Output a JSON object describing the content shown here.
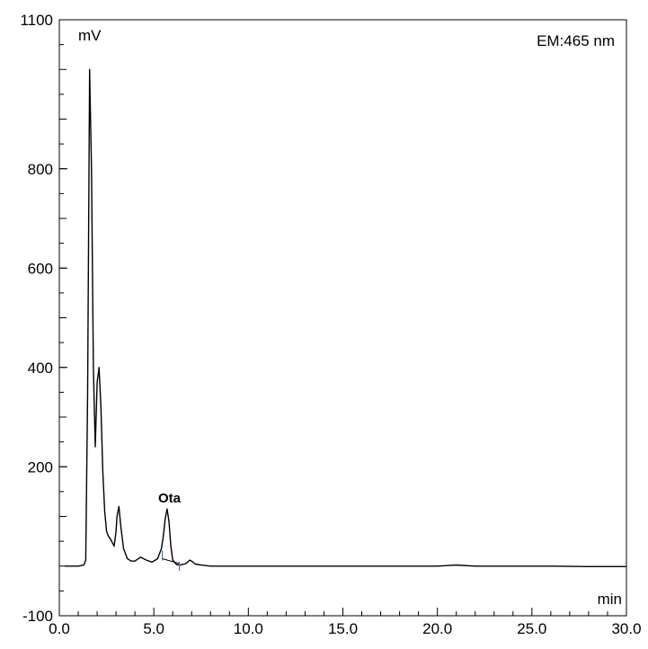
{
  "chart_data": {
    "type": "line",
    "y_unit": "mV",
    "x_unit": "min",
    "detector_label": "EM:465 nm",
    "xlim": [
      0.0,
      30.0
    ],
    "ylim": [
      -100,
      1100
    ],
    "x_ticks": [
      "0.0",
      "5.0",
      "10.0",
      "15.0",
      "20.0",
      "25.0",
      "30.0"
    ],
    "y_ticks": [
      "-100",
      "200",
      "400",
      "600",
      "800",
      "1100"
    ],
    "annotations": [
      {
        "text": "Ota",
        "x": 5.73,
        "y": 112
      }
    ],
    "series": [
      {
        "x": [
          0.3,
          1.0,
          1.3,
          1.4,
          1.5,
          1.6,
          1.7,
          1.8,
          1.9,
          2.0,
          2.1,
          2.2,
          2.3,
          2.4,
          2.5,
          2.6,
          2.7,
          2.9,
          3.0,
          3.05,
          3.15,
          3.25,
          3.4,
          3.6,
          3.8,
          4.0,
          4.3,
          4.6,
          4.9,
          5.2,
          5.4,
          5.5,
          5.6,
          5.7,
          5.8,
          5.9,
          6.0,
          6.2,
          6.4,
          6.7,
          6.9,
          7.0,
          7.2,
          7.5,
          8.0,
          9.0,
          10.0,
          12.0,
          14.0,
          16.0,
          18.0,
          20.0,
          21.0,
          22.0,
          24.0,
          26.0,
          28.0,
          30.0
        ],
        "y": [
          0,
          0,
          2,
          12,
          350,
          1000,
          800,
          400,
          240,
          370,
          400,
          320,
          190,
          110,
          70,
          60,
          55,
          40,
          70,
          100,
          120,
          80,
          35,
          15,
          10,
          10,
          18,
          12,
          8,
          15,
          35,
          60,
          95,
          115,
          90,
          40,
          12,
          3,
          2,
          5,
          12,
          10,
          4,
          2,
          0,
          0,
          0,
          0,
          0,
          0,
          0,
          0,
          2,
          0,
          0,
          0,
          -1,
          -1
        ]
      }
    ],
    "baseline": {
      "x": [
        5.45,
        6.35
      ],
      "y": [
        15,
        5
      ]
    },
    "grid": false,
    "colors": {
      "trace": "#000000",
      "integration_marker": "#4a6fa5"
    }
  }
}
